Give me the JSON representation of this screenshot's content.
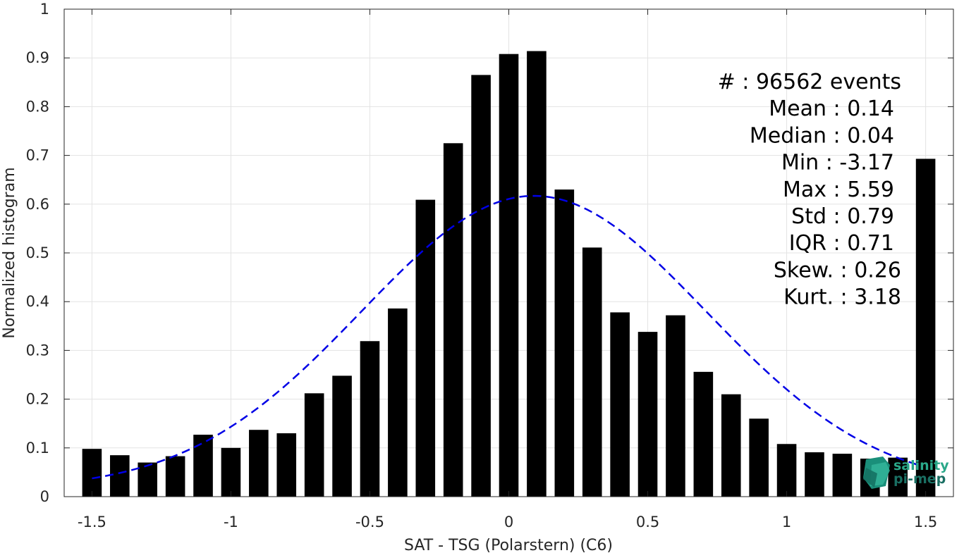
{
  "chart_data": {
    "type": "bar",
    "title": "",
    "xlabel": "SAT - TSG (Polarstern) (C6)",
    "ylabel": "Normalized histogram",
    "xlim": [
      -1.6,
      1.6
    ],
    "ylim": [
      0,
      1
    ],
    "grid": true,
    "xticks": [
      -1.5,
      -1,
      -0.5,
      0,
      0.5,
      1,
      1.5
    ],
    "xtick_labels": [
      "-1.5",
      "-1",
      "-0.5",
      "0",
      "0.5",
      "1",
      "1.5"
    ],
    "yticks": [
      0,
      0.1,
      0.2,
      0.3,
      0.4,
      0.5,
      0.6,
      0.7,
      0.8,
      0.9,
      1
    ],
    "ytick_labels": [
      "0",
      "0.1",
      "0.2",
      "0.3",
      "0.4",
      "0.5",
      "0.6",
      "0.7",
      "0.8",
      "0.9",
      "1"
    ],
    "bar_width": 0.07,
    "bar_color": "#000000",
    "x": [
      -1.5,
      -1.4,
      -1.3,
      -1.2,
      -1.1,
      -1.0,
      -0.9,
      -0.8,
      -0.7,
      -0.6,
      -0.5,
      -0.4,
      -0.3,
      -0.2,
      -0.1,
      0.0,
      0.1,
      0.2,
      0.3,
      0.4,
      0.5,
      0.6,
      0.7,
      0.8,
      0.9,
      1.0,
      1.1,
      1.2,
      1.3,
      1.4,
      1.5
    ],
    "values": [
      0.098,
      0.085,
      0.07,
      0.083,
      0.127,
      0.1,
      0.137,
      0.13,
      0.212,
      0.248,
      0.319,
      0.386,
      0.609,
      0.725,
      0.865,
      0.908,
      0.914,
      0.63,
      0.511,
      0.378,
      0.338,
      0.372,
      0.256,
      0.21,
      0.16,
      0.108,
      0.091,
      0.088,
      0.078,
      0.08,
      0.693
    ],
    "fit_curve": {
      "style": "dashed",
      "color": "#0000e6",
      "x_range": [
        -1.5,
        1.47
      ],
      "mean": 0.09,
      "std": 0.62,
      "peak": 0.617,
      "offset": 0.015
    },
    "stats": [
      {
        "label": "#",
        "sep": ": 96562 events"
      },
      {
        "label": "Mean",
        "sep": ": 0.14"
      },
      {
        "label": "Median",
        "sep": ": 0.04"
      },
      {
        "label": "Min",
        "sep": ": -3.17"
      },
      {
        "label": "Max",
        "sep": ": 5.59"
      },
      {
        "label": "Std",
        "sep": ": 0.79"
      },
      {
        "label": "IQR",
        "sep": ": 0.71"
      },
      {
        "label": "Skew.",
        "sep": ": 0.26"
      },
      {
        "label": "Kurt.",
        "sep": ": 3.18"
      }
    ]
  },
  "logo": {
    "line1": "salinity",
    "line2": "pi-mep",
    "color1": "#2aa889",
    "color2": "#1a6f63"
  }
}
